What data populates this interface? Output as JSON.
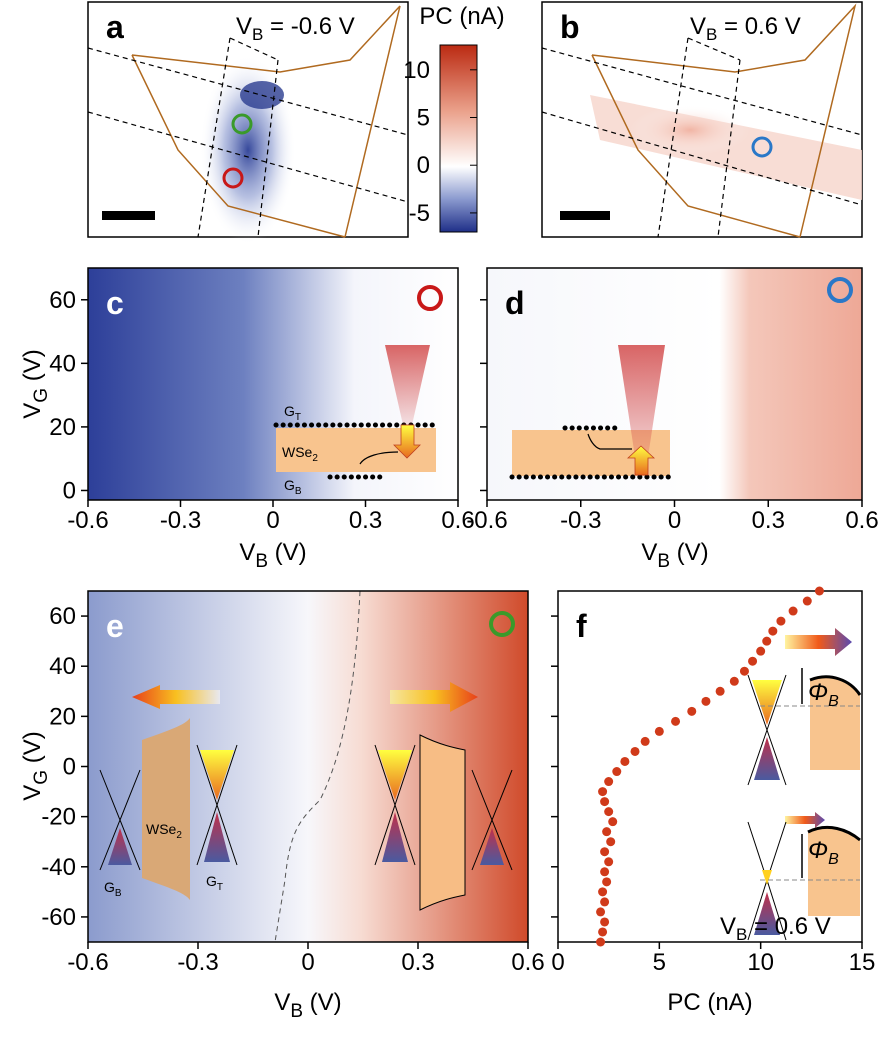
{
  "colorbar": {
    "title": "PC (nA)",
    "lim": [
      -7,
      12.6
    ],
    "ticks": [
      -5,
      0,
      5,
      10
    ]
  },
  "images": [
    {
      "label": "a",
      "annotation": {
        "v": "V",
        "sub": "B",
        "rest": " = -0.6 V"
      }
    },
    {
      "label": "b",
      "annotation": {
        "v": "V",
        "sub": "B",
        "rest": " = 0.6 V"
      }
    }
  ],
  "chart_data": [
    {
      "type": "heatmap",
      "label": "c",
      "xlabel": {
        "v": "V",
        "sub": "B",
        "rest": " (V)"
      },
      "ylabel": {
        "v": "V",
        "sub": "G",
        "rest": " (V)"
      },
      "xlim": [
        -0.6,
        0.6
      ],
      "xticks": [
        -0.6,
        -0.3,
        0,
        0.3,
        0.6
      ],
      "ylim": [
        -3,
        70
      ],
      "yticks": [
        0,
        20,
        40,
        60
      ],
      "ytick_labels": true,
      "inset_labels": [
        {
          "v": "G",
          "sub": "T"
        },
        {
          "v": "WSe",
          "sub": "2"
        },
        {
          "v": "G",
          "sub": "B"
        }
      ]
    },
    {
      "type": "heatmap",
      "label": "d",
      "xlabel": {
        "v": "V",
        "sub": "B",
        "rest": " (V)"
      },
      "xlim": [
        -0.6,
        0.6
      ],
      "xticks": [
        -0.6,
        -0.3,
        0,
        0.3,
        0.6
      ],
      "ylim": [
        -3,
        70
      ],
      "yticks": [
        0,
        20,
        40,
        60
      ],
      "ytick_labels": false
    },
    {
      "type": "heatmap",
      "label": "e",
      "xlabel": {
        "v": "V",
        "sub": "B",
        "rest": " (V)"
      },
      "ylabel": {
        "v": "V",
        "sub": "G",
        "rest": " (V)"
      },
      "xlim": [
        -0.6,
        0.6
      ],
      "xticks": [
        -0.6,
        -0.3,
        0,
        0.3,
        0.6
      ],
      "ylim": [
        -70,
        70
      ],
      "yticks": [
        -60,
        -40,
        -20,
        0,
        20,
        40,
        60
      ],
      "ytick_labels": true,
      "inset_labels": [
        {
          "v": "WSe",
          "sub": "2"
        },
        {
          "v": "G",
          "sub": "T"
        },
        {
          "v": "G",
          "sub": "B"
        }
      ]
    },
    {
      "type": "scatter",
      "label": "f",
      "xlabel": "PC (nA)",
      "color": "#d03a1a",
      "annotation": {
        "v": "V",
        "sub": "B",
        "rest": " = 0.6 V"
      },
      "inset_labels": [
        {
          "v": "Φ",
          "sub": "B"
        },
        {
          "v": "Φ",
          "sub": "B"
        }
      ],
      "x": [
        2.1,
        2.2,
        2.3,
        2.1,
        2.3,
        2.2,
        2.4,
        2.3,
        2.5,
        2.3,
        2.6,
        2.4,
        2.7,
        2.5,
        2.3,
        2.2,
        2.5,
        2.9,
        3.3,
        3.8,
        4.3,
        5.0,
        5.8,
        6.6,
        7.3,
        8.0,
        8.7,
        9.2,
        9.6,
        10.0,
        10.3,
        10.6,
        11.0,
        11.6,
        12.3,
        12.9
      ],
      "y": [
        -70,
        -66,
        -62,
        -58,
        -54,
        -50,
        -46,
        -42,
        -38,
        -34,
        -30,
        -26,
        -22,
        -18,
        -14,
        -10,
        -6,
        -2,
        2,
        6,
        10,
        14,
        18,
        22,
        26,
        30,
        34,
        38,
        42,
        46,
        50,
        54,
        58,
        62,
        66,
        70
      ],
      "xlim": [
        0,
        15
      ],
      "xticks": [
        0,
        5,
        10,
        15
      ],
      "ylim": [
        -70,
        70
      ],
      "yticks": [
        -60,
        -40,
        -20,
        0,
        20,
        40,
        60
      ],
      "ytick_labels": false
    }
  ]
}
